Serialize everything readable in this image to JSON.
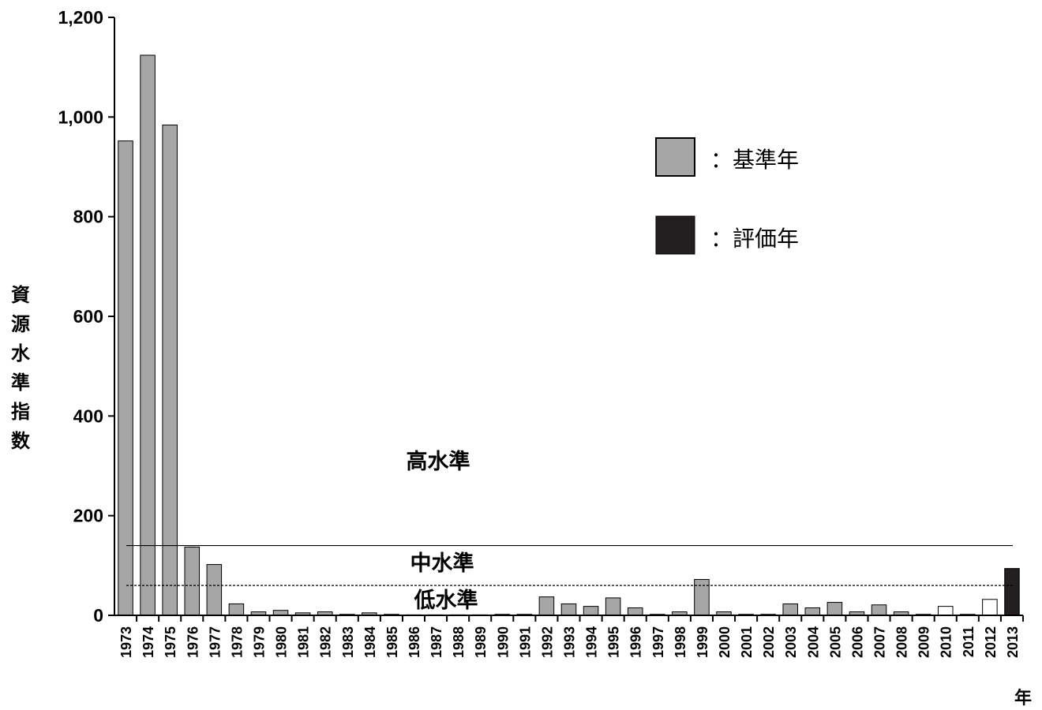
{
  "chart_data": {
    "type": "bar",
    "ylabel": "資源水準指数",
    "xlabel": "年",
    "ylim": [
      0,
      1200
    ],
    "yticks": [
      "0",
      "200",
      "400",
      "600",
      "800",
      "1,000",
      "1,200"
    ],
    "ytick_values": [
      0,
      200,
      400,
      600,
      800,
      1000,
      1200
    ],
    "categories": [
      "1973",
      "1974",
      "1975",
      "1976",
      "1977",
      "1978",
      "1979",
      "1980",
      "1981",
      "1982",
      "1983",
      "1984",
      "1985",
      "1986",
      "1987",
      "1988",
      "1989",
      "1990",
      "1991",
      "1992",
      "1993",
      "1994",
      "1995",
      "1996",
      "1997",
      "1998",
      "1999",
      "2000",
      "2001",
      "2002",
      "2003",
      "2004",
      "2005",
      "2006",
      "2007",
      "2008",
      "2009",
      "2010",
      "2011",
      "2012",
      "2013"
    ],
    "values": [
      952,
      1124,
      984,
      137,
      102,
      23,
      7,
      10,
      5,
      7,
      2,
      5,
      2,
      1,
      1,
      1,
      1,
      2,
      2,
      37,
      23,
      18,
      35,
      15,
      2,
      7,
      72,
      7,
      2,
      2,
      23,
      15,
      26,
      7,
      21,
      7,
      2,
      18,
      2,
      32,
      94
    ],
    "bar_kind": [
      "base",
      "base",
      "base",
      "base",
      "base",
      "base",
      "base",
      "base",
      "base",
      "base",
      "base",
      "base",
      "base",
      "base",
      "base",
      "base",
      "base",
      "base",
      "base",
      "base",
      "base",
      "base",
      "base",
      "base",
      "base",
      "base",
      "base",
      "base",
      "base",
      "base",
      "base",
      "base",
      "base",
      "base",
      "base",
      "base",
      "base",
      "other",
      "other",
      "other",
      "eval"
    ],
    "thresholds": [
      {
        "value": 140,
        "style": "solid"
      },
      {
        "value": 60,
        "style": "dashed"
      }
    ],
    "level_labels": [
      "高水準",
      "中水準",
      "低水準"
    ],
    "legend": [
      {
        "label": "：基準年",
        "color": "#a6a6a6"
      },
      {
        "label": "：評価年",
        "color": "#231f20"
      }
    ],
    "colors": {
      "base": "#a6a6a6",
      "eval": "#231f20",
      "other": "#ffffff",
      "outline": "#000000"
    }
  }
}
